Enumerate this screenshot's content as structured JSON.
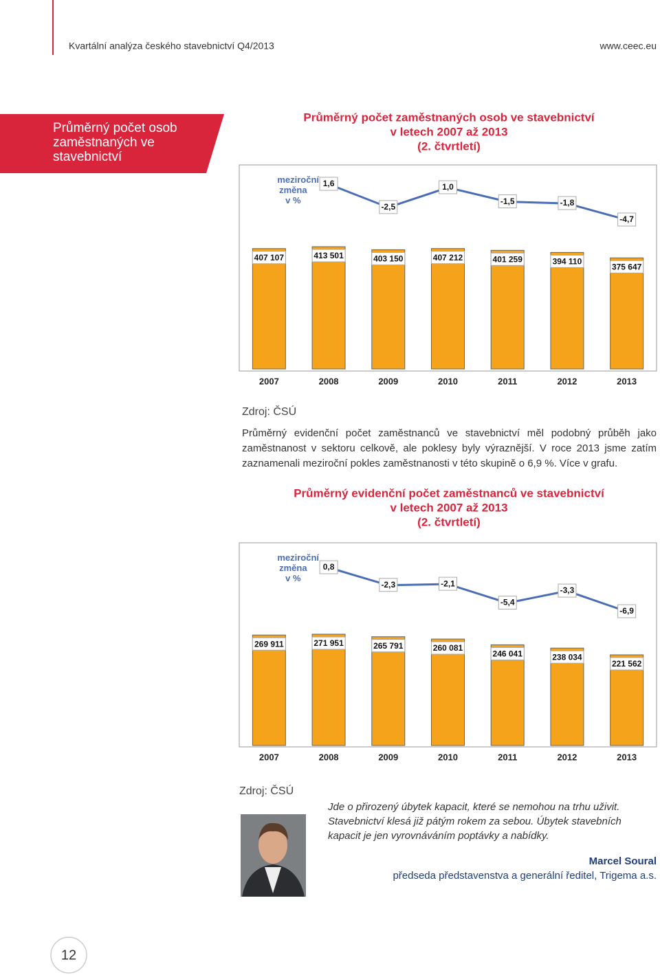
{
  "header": {
    "title": "Kvartální analýza českého stavebnictví Q4/2013",
    "url": "www.ceec.eu"
  },
  "section": {
    "title": "Průměrný počet osob zaměstnaných ve stavebnictví"
  },
  "chart_data": [
    {
      "type": "bar-line",
      "title": [
        "Průměrný počet zaměstnaných osob ve stavebnictví",
        "v letech 2007 až 2013",
        "(2. čtvrtletí)"
      ],
      "categories": [
        "2007",
        "2008",
        "2009",
        "2010",
        "2011",
        "2012",
        "2013"
      ],
      "series": [
        {
          "color": "#f5a31a",
          "values": [
            407107,
            413501,
            403150,
            407212,
            401259,
            394110,
            375647
          ],
          "value_labels": [
            "407 107",
            "413 501",
            "403 150",
            "407 212",
            "401 259",
            "394 110",
            "375 647"
          ]
        },
        {
          "name": "meziroční změna v %",
          "color": "#4a6db5",
          "values": [
            null,
            1.6,
            -2.5,
            1.0,
            -1.5,
            -1.8,
            -4.7
          ],
          "value_labels": [
            null,
            "1,6",
            "-2,5",
            "1,0",
            "-1,5",
            "-1,8",
            "-4,7"
          ]
        }
      ],
      "source": "Zdroj: ČSÚ"
    },
    {
      "type": "bar-line",
      "title": [
        "Průměrný evidenční počet zaměstnanců ve stavebnictví",
        "v letech 2007 až 2013",
        "(2. čtvrtletí)"
      ],
      "categories": [
        "2007",
        "2008",
        "2009",
        "2010",
        "2011",
        "2012",
        "2013"
      ],
      "series": [
        {
          "color": "#f5a31a",
          "values": [
            269911,
            271951,
            265791,
            260081,
            246041,
            238034,
            221562
          ],
          "value_labels": [
            "269 911",
            "271 951",
            "265 791",
            "260 081",
            "246 041",
            "238 034",
            "221 562"
          ]
        },
        {
          "name": "meziroční změna v %",
          "color": "#4a6db5",
          "values": [
            null,
            0.8,
            -2.3,
            -2.1,
            -5.4,
            -3.3,
            -6.9
          ],
          "value_labels": [
            null,
            "0,8",
            "-2,3",
            "-2,1",
            "-5,4",
            "-3,3",
            "-6,9"
          ]
        }
      ],
      "source": "Zdroj: ČSÚ"
    }
  ],
  "paragraph": "Průměrný evidenční počet zaměstnanců ve stavebnictví měl podobný průběh jako zaměstnanost v sektoru celkově, ale poklesy byly výraznější. V roce 2013 jsme zatím zaznamenali meziroční pokles zaměstnanosti v této skupině o 6,9 %. Více v grafu.",
  "quote": {
    "text": "Jde o přirozený úbytek kapacit, které se nemohou na trhu uživit. Stavebnictví klesá již pátým rokem za sebou. Úbytek stavebních kapacit je jen vyrovnáváním poptávky a nabídky.",
    "author": "Marcel Soural",
    "role": "předseda představenstva a generální ředitel, Trigema a.s."
  },
  "page_number": "12"
}
